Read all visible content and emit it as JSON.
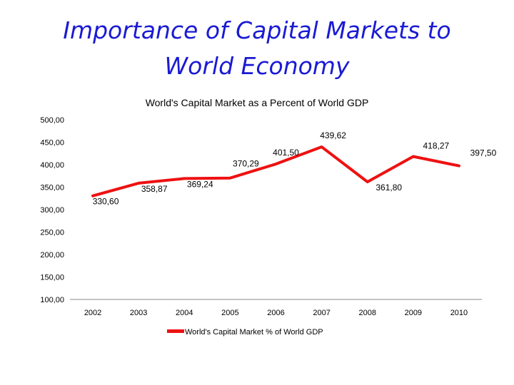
{
  "slide": {
    "title_line1": "Importance of Capital Markets to",
    "title_line2": "World Economy"
  },
  "chart_data": {
    "type": "line",
    "title": "World's Capital Market as a Percent of World GDP",
    "xlabel": "",
    "ylabel": "",
    "categories": [
      "2002",
      "2003",
      "2004",
      "2005",
      "2006",
      "2007",
      "2008",
      "2009",
      "2010"
    ],
    "series": [
      {
        "name": "World's Capital Market % of World GDP",
        "values": [
          330.6,
          358.87,
          369.24,
          370.29,
          401.5,
          439.62,
          361.8,
          418.27,
          397.5
        ],
        "labels": [
          "330,60",
          "358,87",
          "369,24",
          "370,29",
          "401,50",
          "439,62",
          "361,80",
          "418,27",
          "397,50"
        ],
        "color": "#ee1111"
      }
    ],
    "ylim": [
      100,
      500
    ],
    "yticks": [
      100,
      150,
      200,
      250,
      300,
      350,
      400,
      450,
      500
    ],
    "ytick_labels": [
      "100,00",
      "150,00",
      "200,00",
      "250,00",
      "300,00",
      "350,00",
      "400,00",
      "450,00",
      "500,00"
    ],
    "grid": false,
    "legend_position": "bottom"
  }
}
